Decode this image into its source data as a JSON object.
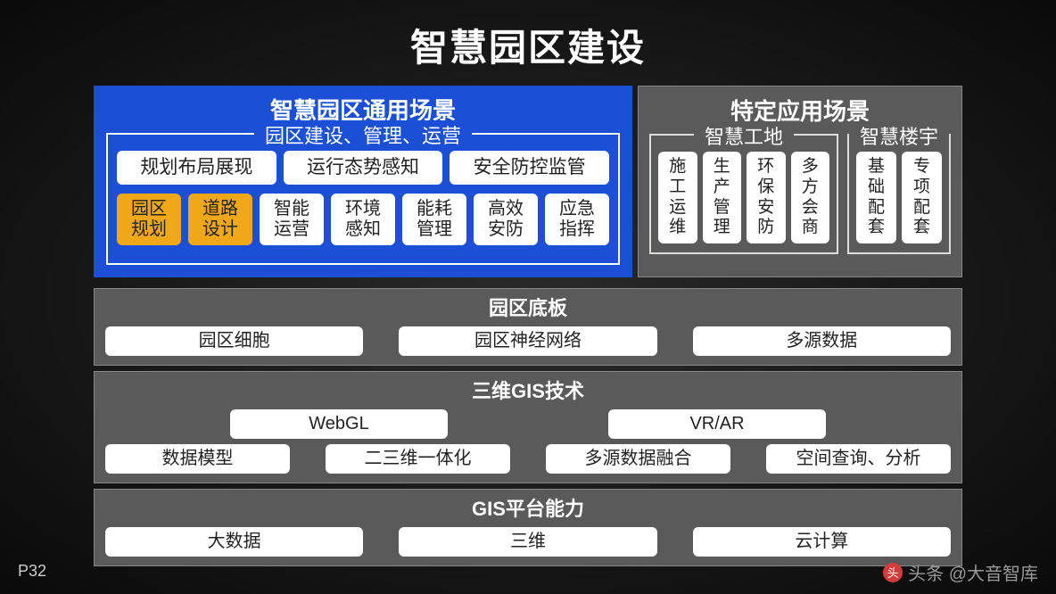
{
  "title": "智慧园区建设",
  "page_number": "P32",
  "watermark": "头条 @大音智库",
  "colors": {
    "background_dark": "#0a0a0a",
    "panel_gray": "#5a5a5a",
    "panel_blue": "#1b4fd6",
    "pill_white": "#ffffff",
    "pill_orange": "#f0a818",
    "text_dark": "#222222",
    "text_light": "#ffffff"
  },
  "left": {
    "title": "智慧园区通用场景",
    "group_legend": "园区建设、管理、运营",
    "row1": [
      "规划布局展现",
      "运行态势感知",
      "安全防控监管"
    ],
    "row2": [
      {
        "label": "园区规划",
        "highlight": true
      },
      {
        "label": "道路设计",
        "highlight": true
      },
      {
        "label": "智能运营",
        "highlight": false
      },
      {
        "label": "环境感知",
        "highlight": false
      },
      {
        "label": "能耗管理",
        "highlight": false
      },
      {
        "label": "高效安防",
        "highlight": false
      },
      {
        "label": "应急指挥",
        "highlight": false
      }
    ]
  },
  "right": {
    "title": "特定应用场景",
    "groups": [
      {
        "legend": "智慧工地",
        "items": [
          "施工运维",
          "生产管理",
          "环保安防",
          "多方会商"
        ]
      },
      {
        "legend": "智慧楼宇",
        "items": [
          "基础配套",
          "专项配套"
        ]
      }
    ]
  },
  "sections": [
    {
      "title": "园区底板",
      "rows": [
        [
          "园区细胞",
          "园区神经网络",
          "多源数据"
        ]
      ]
    },
    {
      "title": "三维GIS技术",
      "rows": [
        [
          "WebGL",
          "VR/AR"
        ],
        [
          "数据模型",
          "二三维一体化",
          "多源数据融合",
          "空间查询、分析"
        ]
      ]
    },
    {
      "title": "GIS平台能力",
      "rows": [
        [
          "大数据",
          "三维",
          "云计算"
        ]
      ]
    }
  ]
}
